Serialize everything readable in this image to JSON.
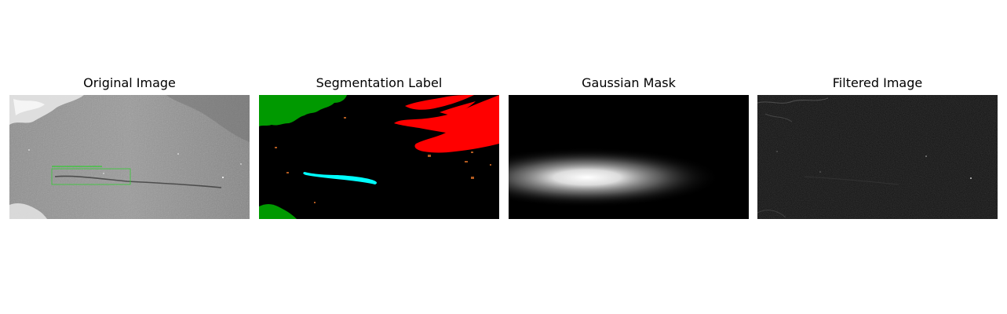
{
  "figure": {
    "panels": [
      {
        "id": "original",
        "title": "Original Image",
        "icon": "sar-image"
      },
      {
        "id": "segmentation",
        "title": "Segmentation Label",
        "icon": "segmentation-map"
      },
      {
        "id": "gaussian",
        "title": "Gaussian Mask",
        "icon": "gaussian-blob"
      },
      {
        "id": "filtered",
        "title": "Filtered Image",
        "icon": "filtered-sar-image"
      }
    ]
  },
  "colors": {
    "background": "#ffffff",
    "sar_gray": "#8c8c8c",
    "bbox_green": "#33cc33",
    "label_land_green": "#009900",
    "label_ship_red": "#ff0000",
    "label_oil_cyan": "#00ffff",
    "label_object_orange": "#b25a1f",
    "black": "#000000",
    "white": "#ffffff"
  }
}
